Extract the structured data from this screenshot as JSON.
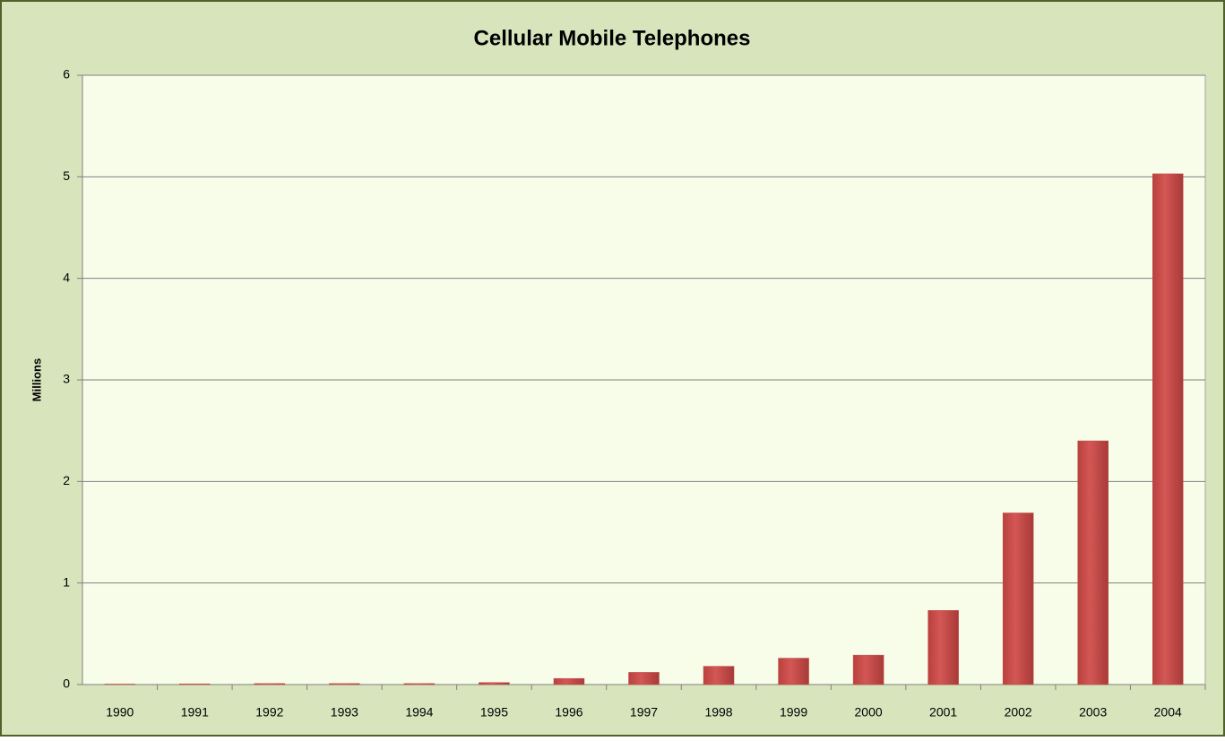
{
  "chart_data": {
    "type": "bar",
    "title": "Cellular Mobile Telephones",
    "y_label": "Millions",
    "categories": [
      "1990",
      "1991",
      "1992",
      "1993",
      "1994",
      "1995",
      "1996",
      "1997",
      "1998",
      "1999",
      "2000",
      "2001",
      "2002",
      "2003",
      "2004"
    ],
    "values": [
      0.005,
      0.007,
      0.01,
      0.01,
      0.01,
      0.02,
      0.06,
      0.12,
      0.18,
      0.26,
      0.29,
      0.73,
      1.69,
      2.4,
      5.03
    ],
    "color": "#c0504d",
    "ylim": [
      0,
      6
    ],
    "yticks": [
      0,
      1,
      2,
      3,
      4,
      5,
      6
    ],
    "grid": true
  }
}
